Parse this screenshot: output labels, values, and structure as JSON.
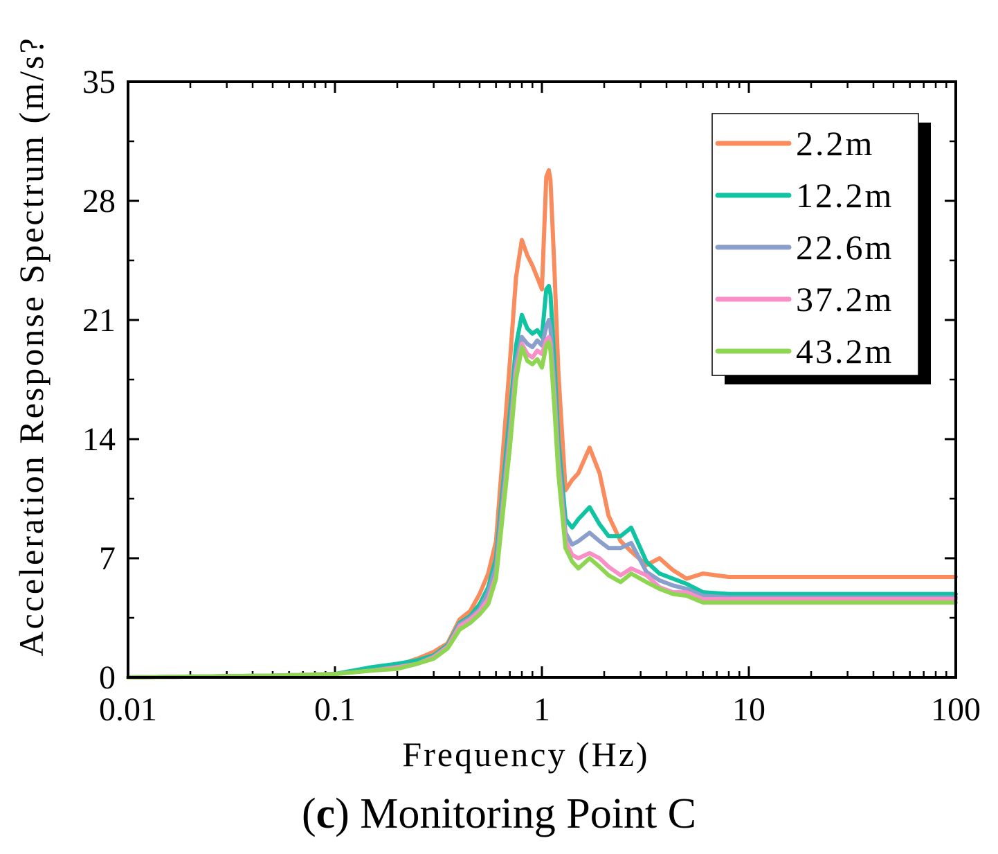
{
  "chart_data": {
    "type": "line",
    "title": "",
    "xlabel": "Frequency (Hz)",
    "ylabel": "Acceleration Response Spectrum (m/s?",
    "xscale": "log",
    "xlim": [
      0.01,
      100
    ],
    "ylim": [
      0,
      35
    ],
    "xticks": [
      0.01,
      0.1,
      1,
      10,
      100
    ],
    "xtick_labels": [
      "0.01",
      "0.1",
      "1",
      "10",
      "100"
    ],
    "yticks": [
      0,
      7,
      14,
      21,
      28,
      35
    ],
    "ytick_labels": [
      "0",
      "7",
      "14",
      "21",
      "28",
      "35"
    ],
    "grid": false,
    "legend_position": "top-right",
    "series": [
      {
        "name": "2.2m",
        "color": "#F98B5D",
        "x": [
          0.01,
          0.05,
          0.1,
          0.15,
          0.2,
          0.25,
          0.3,
          0.35,
          0.4,
          0.45,
          0.5,
          0.55,
          0.6,
          0.7,
          0.75,
          0.8,
          0.85,
          0.9,
          0.95,
          1.0,
          1.05,
          1.08,
          1.1,
          1.15,
          1.2,
          1.3,
          1.4,
          1.5,
          1.7,
          1.9,
          2.1,
          2.4,
          2.7,
          3.2,
          3.7,
          4.3,
          5,
          6,
          8,
          10,
          14,
          20,
          30,
          50,
          100
        ],
        "y": [
          0,
          0.1,
          0.2,
          0.5,
          0.7,
          1.1,
          1.5,
          2.0,
          3.4,
          3.9,
          4.9,
          6.1,
          8.0,
          18.5,
          23.5,
          25.7,
          24.8,
          24.2,
          23.5,
          22.8,
          29.4,
          29.8,
          29.2,
          24.0,
          18.0,
          11.0,
          11.6,
          12.0,
          13.5,
          12.0,
          9.5,
          8.0,
          7.4,
          6.6,
          7.0,
          6.3,
          5.8,
          6.1,
          5.9,
          5.9,
          5.9,
          5.9,
          5.9,
          5.9,
          5.9
        ]
      },
      {
        "name": "12.2m",
        "color": "#10C3A2",
        "x": [
          0.01,
          0.05,
          0.1,
          0.15,
          0.2,
          0.25,
          0.3,
          0.35,
          0.4,
          0.45,
          0.5,
          0.55,
          0.6,
          0.7,
          0.75,
          0.8,
          0.85,
          0.9,
          0.95,
          1.0,
          1.05,
          1.08,
          1.1,
          1.15,
          1.2,
          1.3,
          1.4,
          1.5,
          1.7,
          1.9,
          2.1,
          2.4,
          2.7,
          3.2,
          3.7,
          4.3,
          5,
          6,
          8,
          10,
          14,
          20,
          30,
          50,
          100
        ],
        "y": [
          0,
          0.1,
          0.2,
          0.6,
          0.8,
          1.0,
          1.3,
          1.9,
          3.2,
          3.6,
          4.3,
          5.3,
          7.0,
          15.5,
          19.5,
          21.3,
          20.5,
          20.2,
          20.4,
          20.0,
          22.8,
          23.0,
          22.5,
          18.5,
          14.0,
          9.3,
          8.8,
          9.3,
          10.0,
          9.0,
          8.3,
          8.3,
          8.8,
          6.8,
          6.1,
          5.8,
          5.5,
          5.0,
          4.9,
          4.9,
          4.9,
          4.9,
          4.9,
          4.9,
          4.9
        ]
      },
      {
        "name": "22.6m",
        "color": "#8B9FCC",
        "x": [
          0.01,
          0.05,
          0.1,
          0.15,
          0.2,
          0.25,
          0.3,
          0.35,
          0.4,
          0.45,
          0.5,
          0.55,
          0.6,
          0.7,
          0.75,
          0.8,
          0.85,
          0.9,
          0.95,
          1.0,
          1.05,
          1.08,
          1.1,
          1.15,
          1.2,
          1.3,
          1.4,
          1.5,
          1.7,
          1.9,
          2.1,
          2.4,
          2.7,
          3.2,
          3.7,
          4.3,
          5,
          6,
          8,
          10,
          14,
          20,
          30,
          50,
          100
        ],
        "y": [
          0,
          0.1,
          0.2,
          0.4,
          0.6,
          0.8,
          1.2,
          1.8,
          3.1,
          3.5,
          4.0,
          5.0,
          6.5,
          14.5,
          18.5,
          20.0,
          19.6,
          19.4,
          19.8,
          19.5,
          20.6,
          21.0,
          20.5,
          17.0,
          13.0,
          8.5,
          7.8,
          8.0,
          8.5,
          8.0,
          7.6,
          7.6,
          7.9,
          6.2,
          5.7,
          5.4,
          5.2,
          4.8,
          4.7,
          4.7,
          4.7,
          4.7,
          4.7,
          4.7,
          4.7
        ]
      },
      {
        "name": "37.2m",
        "color": "#F88FC6",
        "x": [
          0.01,
          0.05,
          0.1,
          0.15,
          0.2,
          0.25,
          0.3,
          0.35,
          0.4,
          0.45,
          0.5,
          0.55,
          0.6,
          0.7,
          0.75,
          0.8,
          0.85,
          0.9,
          0.95,
          1.0,
          1.05,
          1.08,
          1.1,
          1.15,
          1.2,
          1.3,
          1.4,
          1.5,
          1.7,
          1.9,
          2.1,
          2.4,
          2.7,
          3.2,
          3.7,
          4.3,
          5,
          6,
          8,
          10,
          14,
          20,
          30,
          50,
          100
        ],
        "y": [
          0,
          0.1,
          0.2,
          0.4,
          0.6,
          0.8,
          1.2,
          1.8,
          3.0,
          3.4,
          3.9,
          4.6,
          6.0,
          14.0,
          18.0,
          19.6,
          19.0,
          18.8,
          19.2,
          19.0,
          19.8,
          20.0,
          19.6,
          16.3,
          12.5,
          8.0,
          7.2,
          7.0,
          7.3,
          7.0,
          6.5,
          6.0,
          6.4,
          6.0,
          5.3,
          5.0,
          5.0,
          4.6,
          4.6,
          4.6,
          4.6,
          4.6,
          4.6,
          4.6,
          4.6
        ]
      },
      {
        "name": "43.2m",
        "color": "#8ED552",
        "x": [
          0.01,
          0.05,
          0.1,
          0.15,
          0.2,
          0.25,
          0.3,
          0.35,
          0.4,
          0.45,
          0.5,
          0.55,
          0.6,
          0.7,
          0.75,
          0.8,
          0.85,
          0.9,
          0.95,
          1.0,
          1.05,
          1.08,
          1.1,
          1.15,
          1.2,
          1.3,
          1.4,
          1.5,
          1.7,
          1.9,
          2.1,
          2.4,
          2.7,
          3.2,
          3.7,
          4.3,
          5,
          6,
          8,
          10,
          14,
          20,
          30,
          50,
          100
        ],
        "y": [
          0,
          0.1,
          0.2,
          0.4,
          0.5,
          0.8,
          1.1,
          1.7,
          2.8,
          3.2,
          3.7,
          4.3,
          5.8,
          13.5,
          17.5,
          19.4,
          18.6,
          18.4,
          18.7,
          18.2,
          19.5,
          19.7,
          19.2,
          15.8,
          12.0,
          7.6,
          6.8,
          6.4,
          7.0,
          6.5,
          6.0,
          5.6,
          6.1,
          5.6,
          5.2,
          4.9,
          4.8,
          4.4,
          4.4,
          4.4,
          4.4,
          4.4,
          4.4,
          4.4,
          4.4
        ]
      }
    ]
  },
  "caption": {
    "label": "(c)",
    "label_letter": "c",
    "text": "Monitoring Point C"
  }
}
